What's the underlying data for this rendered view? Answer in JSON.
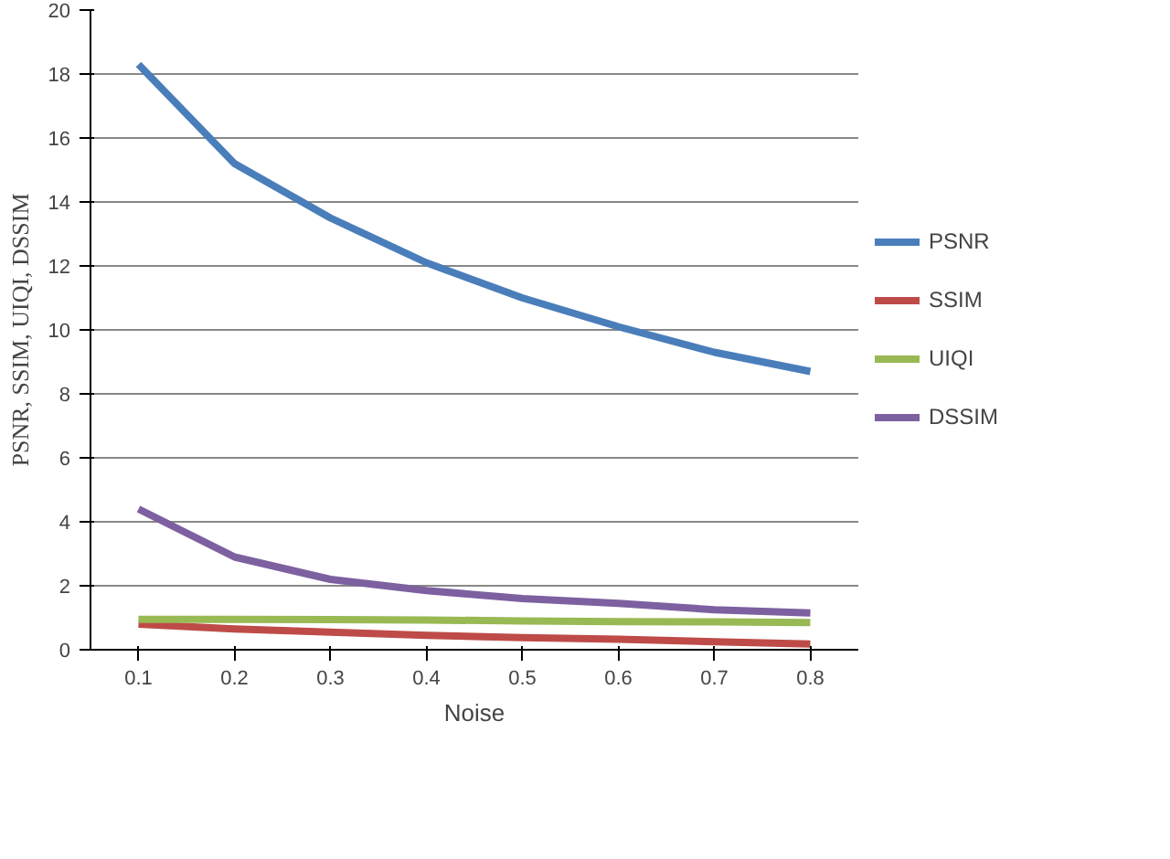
{
  "chart_data": {
    "type": "line",
    "xlabel": "Noise",
    "ylabel": "PSNR, SSIM, UIQI, DSSIM",
    "categories": [
      "0.1",
      "0.2",
      "0.3",
      "0.4",
      "0.5",
      "0.6",
      "0.7",
      "0.8"
    ],
    "ylim": [
      0,
      20
    ],
    "yticks": [
      0,
      2,
      4,
      6,
      8,
      10,
      12,
      14,
      16,
      18,
      20
    ],
    "grid": "y",
    "legend": "right",
    "series": [
      {
        "name": "PSNR",
        "color": "#4a7ebb",
        "values": [
          18.3,
          15.2,
          13.5,
          12.1,
          11.0,
          10.1,
          9.3,
          8.7
        ]
      },
      {
        "name": "SSIM",
        "color": "#be4b48",
        "values": [
          0.8,
          0.65,
          0.55,
          0.45,
          0.38,
          0.33,
          0.25,
          0.18
        ]
      },
      {
        "name": "UIQI",
        "color": "#98b954",
        "values": [
          0.95,
          0.95,
          0.94,
          0.93,
          0.9,
          0.88,
          0.87,
          0.85
        ]
      },
      {
        "name": "DSSIM",
        "color": "#7d60a0",
        "values": [
          4.4,
          2.9,
          2.2,
          1.85,
          1.6,
          1.45,
          1.25,
          1.15
        ]
      }
    ]
  }
}
